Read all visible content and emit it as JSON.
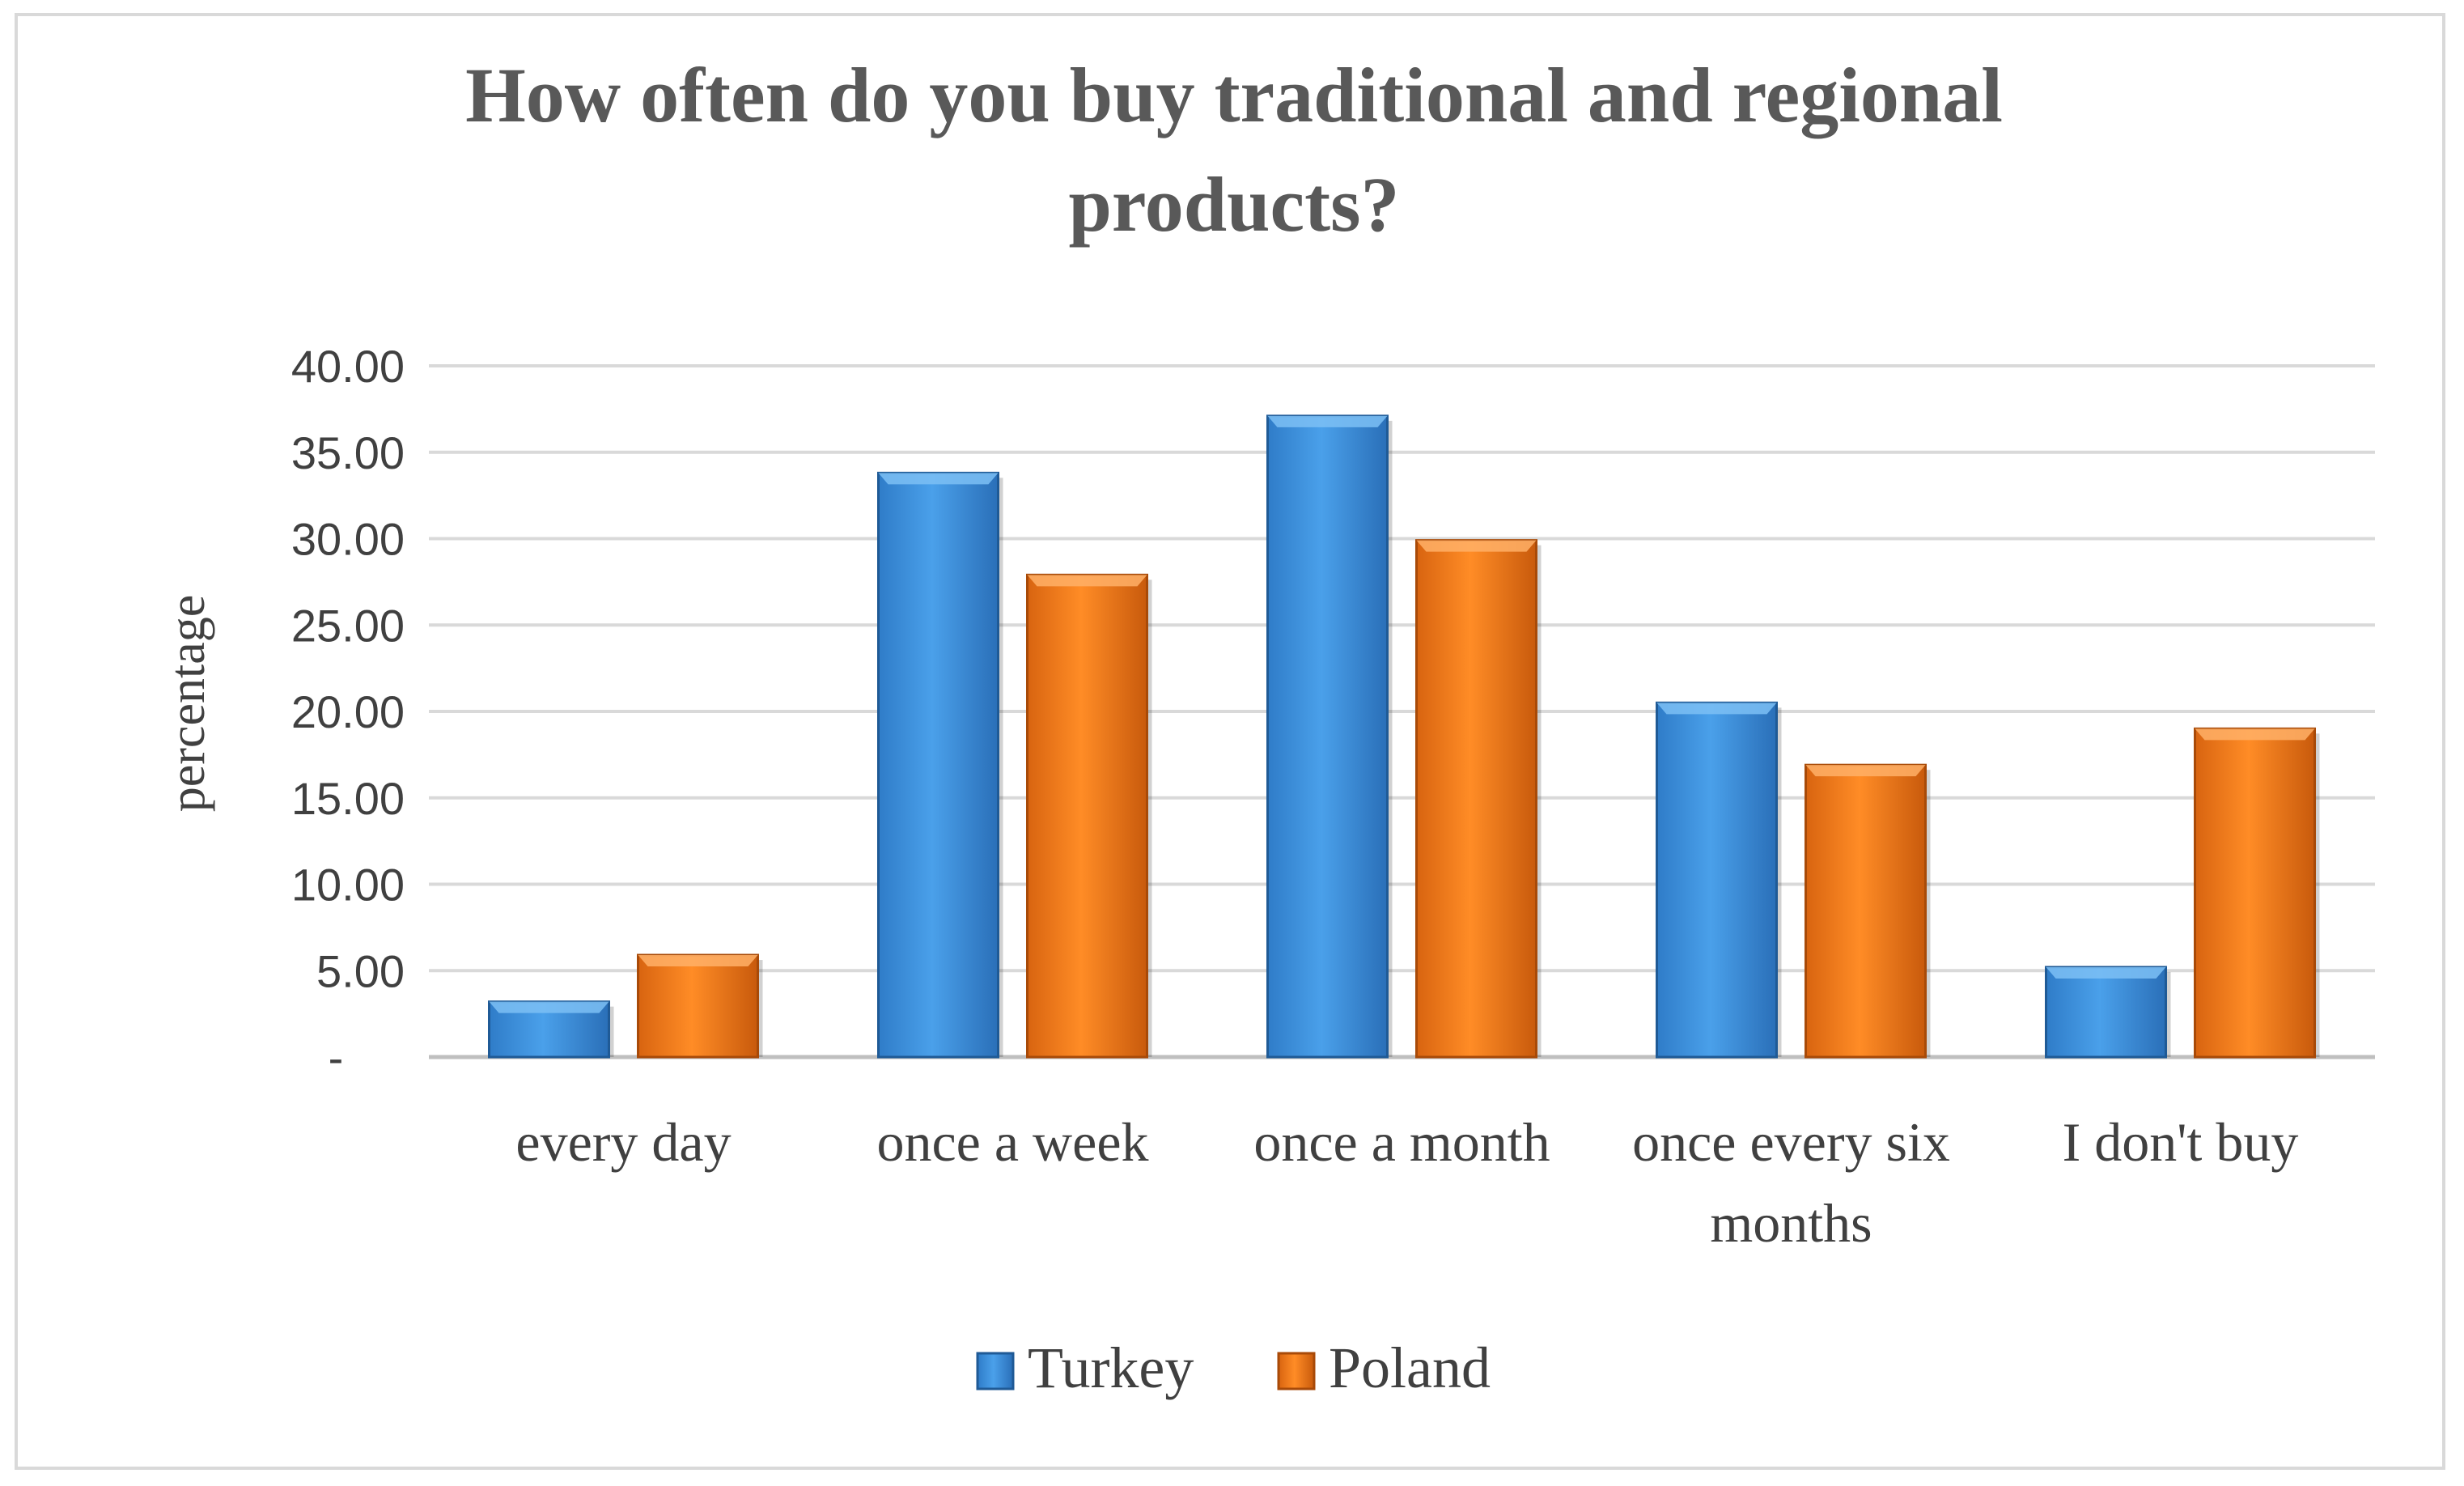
{
  "chart_data": {
    "type": "bar",
    "title": "How often do you buy traditional and regional products?",
    "title_lines": [
      "How often do you buy traditional and regional",
      "products?"
    ],
    "ylabel": "percentage",
    "xlabel": "",
    "ylim": [
      0,
      40
    ],
    "yticks": [
      0,
      5,
      10,
      15,
      20,
      25,
      30,
      35,
      40
    ],
    "ytick_labels": [
      "-",
      "5.00",
      "10.00",
      "15.00",
      "20.00",
      "25.00",
      "30.00",
      "35.00",
      "40.00"
    ],
    "categories": [
      "every day",
      "once a week",
      "once a month",
      "once every six months",
      "I don't buy"
    ],
    "category_lines": [
      [
        "every day"
      ],
      [
        "once a week"
      ],
      [
        "once a month"
      ],
      [
        "once every six",
        "months"
      ],
      [
        "I don't buy"
      ]
    ],
    "series": [
      {
        "name": "Turkey",
        "color": "#3a8ee0",
        "values": [
          3.2,
          33.8,
          37.1,
          20.5,
          5.2
        ]
      },
      {
        "name": "Poland",
        "color": "#f07a1a",
        "values": [
          5.9,
          27.9,
          29.9,
          16.9,
          19.0
        ]
      }
    ],
    "grid": true,
    "legend_position": "bottom"
  }
}
